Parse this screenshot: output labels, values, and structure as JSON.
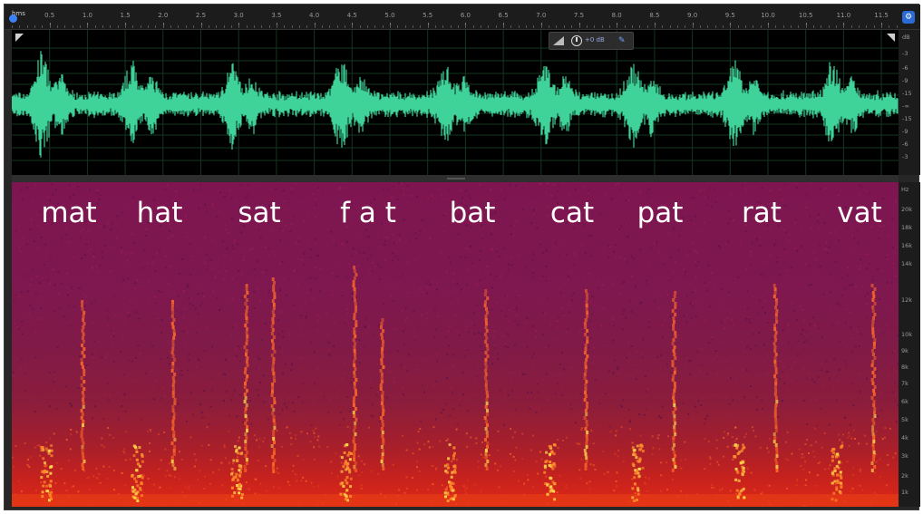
{
  "ruler": {
    "unit": "hms",
    "ticks": [
      "0.5",
      "1.0",
      "1.5",
      "2.0",
      "2.5",
      "3.0",
      "3.5",
      "4.0",
      "4.5",
      "5.0",
      "5.5",
      "6.0",
      "6.5",
      "7.0",
      "7.5",
      "8.0",
      "8.5",
      "9.0",
      "9.5",
      "10.0",
      "10.5",
      "11.0",
      "11.5"
    ]
  },
  "hud": {
    "gain": "+0 dB"
  },
  "amplitude_scale": [
    "dB",
    "-3",
    "-6",
    "-9",
    "-15",
    "-∞",
    "-15",
    "-9",
    "-6",
    "-3"
  ],
  "frequency_scale": [
    "Hz",
    "20k",
    "18k",
    "16k",
    "14k",
    "12k",
    "10k",
    "9k",
    "8k",
    "7k",
    "6k",
    "5k",
    "4k",
    "3k",
    "2k",
    "1k"
  ],
  "words": [
    "mat",
    "hat",
    "sat",
    "f a t",
    "bat",
    "cat",
    "pat",
    "rat",
    "vat"
  ],
  "colors": {
    "waveform": "#3fd39a",
    "waveform_bg": "#000000",
    "spectrogram_top": "#7e1551",
    "spectrogram_bottom": "#dd2a18",
    "accent": "#2b6bd6"
  },
  "icons": [
    "playhead-icon",
    "corner-handle-icon",
    "slider-icon",
    "clock-icon",
    "pin-icon",
    "settings-icon"
  ]
}
